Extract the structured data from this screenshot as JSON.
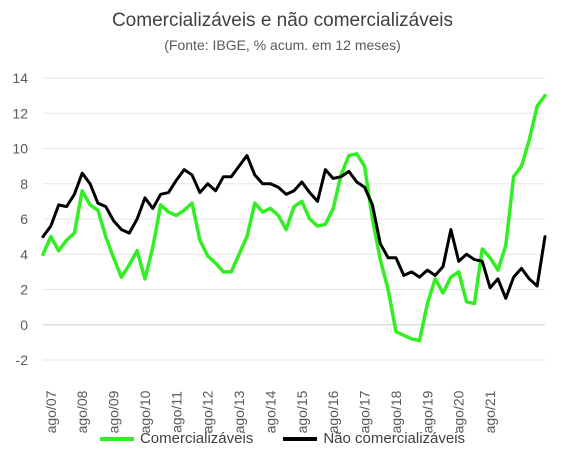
{
  "chart_data": {
    "type": "line",
    "title": "Comercializáveis e não comercializáveis",
    "subtitle": "(Fonte: IBGE, % acum. em 12 meses)",
    "xlabel": "",
    "ylabel": "",
    "ylim": [
      -2,
      14
    ],
    "yticks": [
      "-2",
      "0",
      "2",
      "4",
      "6",
      "8",
      "10",
      "12",
      "14"
    ],
    "x_labels": [
      "ago/07",
      "ago/08",
      "ago/09",
      "ago/10",
      "ago/11",
      "ago/12",
      "ago/13",
      "ago/14",
      "ago/15",
      "ago/16",
      "ago/17",
      "ago/18",
      "ago/19",
      "ago/20",
      "ago/21"
    ],
    "x_start": "2007-07",
    "points_per_year": 4,
    "grid": "horizontal",
    "legend_position": "bottom",
    "series": [
      {
        "name": "Comercializáveis",
        "color": "#33ee22",
        "values": [
          4.0,
          5.0,
          4.2,
          4.8,
          5.2,
          7.6,
          6.8,
          6.5,
          5.0,
          3.8,
          2.7,
          3.4,
          4.2,
          2.6,
          4.4,
          6.8,
          6.4,
          6.2,
          6.5,
          6.9,
          4.8,
          3.9,
          3.5,
          3.0,
          3.0,
          4.0,
          5.0,
          6.9,
          6.4,
          6.6,
          6.2,
          5.4,
          6.7,
          7.0,
          6.0,
          5.6,
          5.7,
          6.6,
          8.5,
          9.6,
          9.7,
          9.0,
          6.0,
          3.7,
          2.0,
          -0.4,
          -0.6,
          -0.8,
          -0.9,
          1.2,
          2.6,
          1.8,
          2.7,
          3.0,
          1.3,
          1.2,
          4.3,
          3.8,
          3.1,
          4.5,
          8.4,
          9.0,
          10.5,
          12.4,
          13.0
        ]
      },
      {
        "name": "Não comercializáveis",
        "color": "#000000",
        "values": [
          5.0,
          5.6,
          6.8,
          6.7,
          7.4,
          8.6,
          8.0,
          6.9,
          6.7,
          5.9,
          5.4,
          5.2,
          6.0,
          7.2,
          6.6,
          7.4,
          7.5,
          8.2,
          8.8,
          8.5,
          7.5,
          8.0,
          7.6,
          8.4,
          8.4,
          9.0,
          9.6,
          8.5,
          8.0,
          8.0,
          7.8,
          7.4,
          7.6,
          8.1,
          7.5,
          7.0,
          8.8,
          8.3,
          8.4,
          8.7,
          8.1,
          7.8,
          6.8,
          4.6,
          3.8,
          3.8,
          2.8,
          3.0,
          2.7,
          3.1,
          2.8,
          3.3,
          5.4,
          3.6,
          4.0,
          3.7,
          3.6,
          2.1,
          2.6,
          1.5,
          2.7,
          3.2,
          2.6,
          2.2,
          5.0
        ]
      }
    ]
  }
}
